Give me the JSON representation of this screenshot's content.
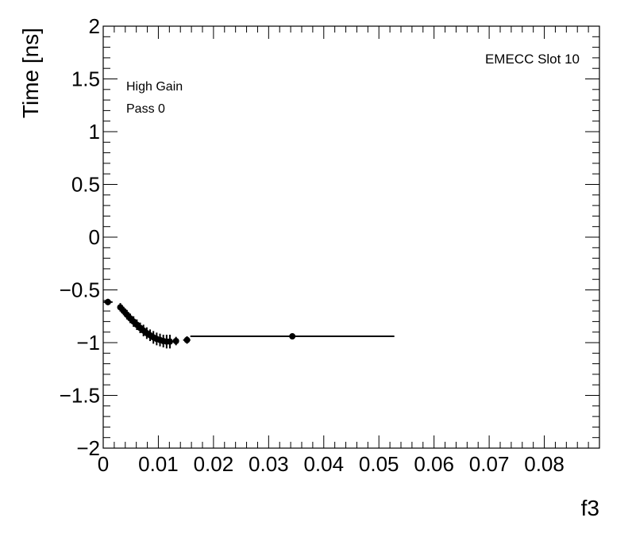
{
  "chart_data": {
    "type": "scatter",
    "xlabel": "f3",
    "ylabel": "Time [ns]",
    "xlim": [
      0,
      0.09
    ],
    "ylim": [
      -2,
      2
    ],
    "x_ticks": [
      0,
      0.01,
      0.02,
      0.03,
      0.04,
      0.05,
      0.06,
      0.07,
      0.08
    ],
    "x_tick_labels": [
      "0",
      "0.01",
      "0.02",
      "0.03",
      "0.04",
      "0.05",
      "0.06",
      "0.07",
      "0.08"
    ],
    "y_ticks": [
      -2,
      -1.5,
      -1,
      -0.5,
      0,
      0.5,
      1,
      1.5,
      2
    ],
    "y_tick_labels": [
      "−2",
      "−1.5",
      "−1",
      "−0.5",
      "0",
      "0.5",
      "1",
      "1.5",
      "2"
    ],
    "grid": false,
    "annotations": {
      "top_right": "EMECC Slot 10",
      "line1": "High Gain",
      "line2": "Pass 0"
    },
    "points": [
      {
        "x": 0.00085,
        "y": -0.615,
        "xlo": 0.0,
        "xhi": 0.0017,
        "yerr": 0.03
      },
      {
        "x": 0.0031,
        "y": -0.665,
        "xlo": 0.0029,
        "xhi": 0.0033,
        "yerr": 0.04
      },
      {
        "x": 0.0037,
        "y": -0.7,
        "xlo": 0.0035,
        "xhi": 0.0039,
        "yerr": 0.04
      },
      {
        "x": 0.0043,
        "y": -0.735,
        "xlo": 0.0041,
        "xhi": 0.0045,
        "yerr": 0.045
      },
      {
        "x": 0.0049,
        "y": -0.77,
        "xlo": 0.0047,
        "xhi": 0.0051,
        "yerr": 0.045
      },
      {
        "x": 0.0055,
        "y": -0.8,
        "xlo": 0.0053,
        "xhi": 0.0057,
        "yerr": 0.05
      },
      {
        "x": 0.0061,
        "y": -0.83,
        "xlo": 0.0059,
        "xhi": 0.0063,
        "yerr": 0.05
      },
      {
        "x": 0.0067,
        "y": -0.86,
        "xlo": 0.0065,
        "xhi": 0.0069,
        "yerr": 0.05
      },
      {
        "x": 0.0073,
        "y": -0.885,
        "xlo": 0.0071,
        "xhi": 0.0075,
        "yerr": 0.055
      },
      {
        "x": 0.0079,
        "y": -0.91,
        "xlo": 0.0077,
        "xhi": 0.0081,
        "yerr": 0.055
      },
      {
        "x": 0.0085,
        "y": -0.93,
        "xlo": 0.0083,
        "xhi": 0.0087,
        "yerr": 0.055
      },
      {
        "x": 0.0091,
        "y": -0.95,
        "xlo": 0.0089,
        "xhi": 0.0093,
        "yerr": 0.06
      },
      {
        "x": 0.0097,
        "y": -0.965,
        "xlo": 0.0095,
        "xhi": 0.0099,
        "yerr": 0.06
      },
      {
        "x": 0.0103,
        "y": -0.975,
        "xlo": 0.0101,
        "xhi": 0.0105,
        "yerr": 0.06
      },
      {
        "x": 0.0109,
        "y": -0.985,
        "xlo": 0.0107,
        "xhi": 0.0111,
        "yerr": 0.06
      },
      {
        "x": 0.0115,
        "y": -0.99,
        "xlo": 0.0113,
        "xhi": 0.0117,
        "yerr": 0.065
      },
      {
        "x": 0.0121,
        "y": -0.99,
        "xlo": 0.0119,
        "xhi": 0.0123,
        "yerr": 0.065
      },
      {
        "x": 0.0132,
        "y": -0.985,
        "xlo": 0.0127,
        "xhi": 0.0137,
        "yerr": 0.04
      },
      {
        "x": 0.0152,
        "y": -0.975,
        "xlo": 0.0145,
        "xhi": 0.0158,
        "yerr": 0.035
      },
      {
        "x": 0.0343,
        "y": -0.94,
        "xlo": 0.0158,
        "xhi": 0.0528,
        "yerr": 0.02
      }
    ]
  }
}
